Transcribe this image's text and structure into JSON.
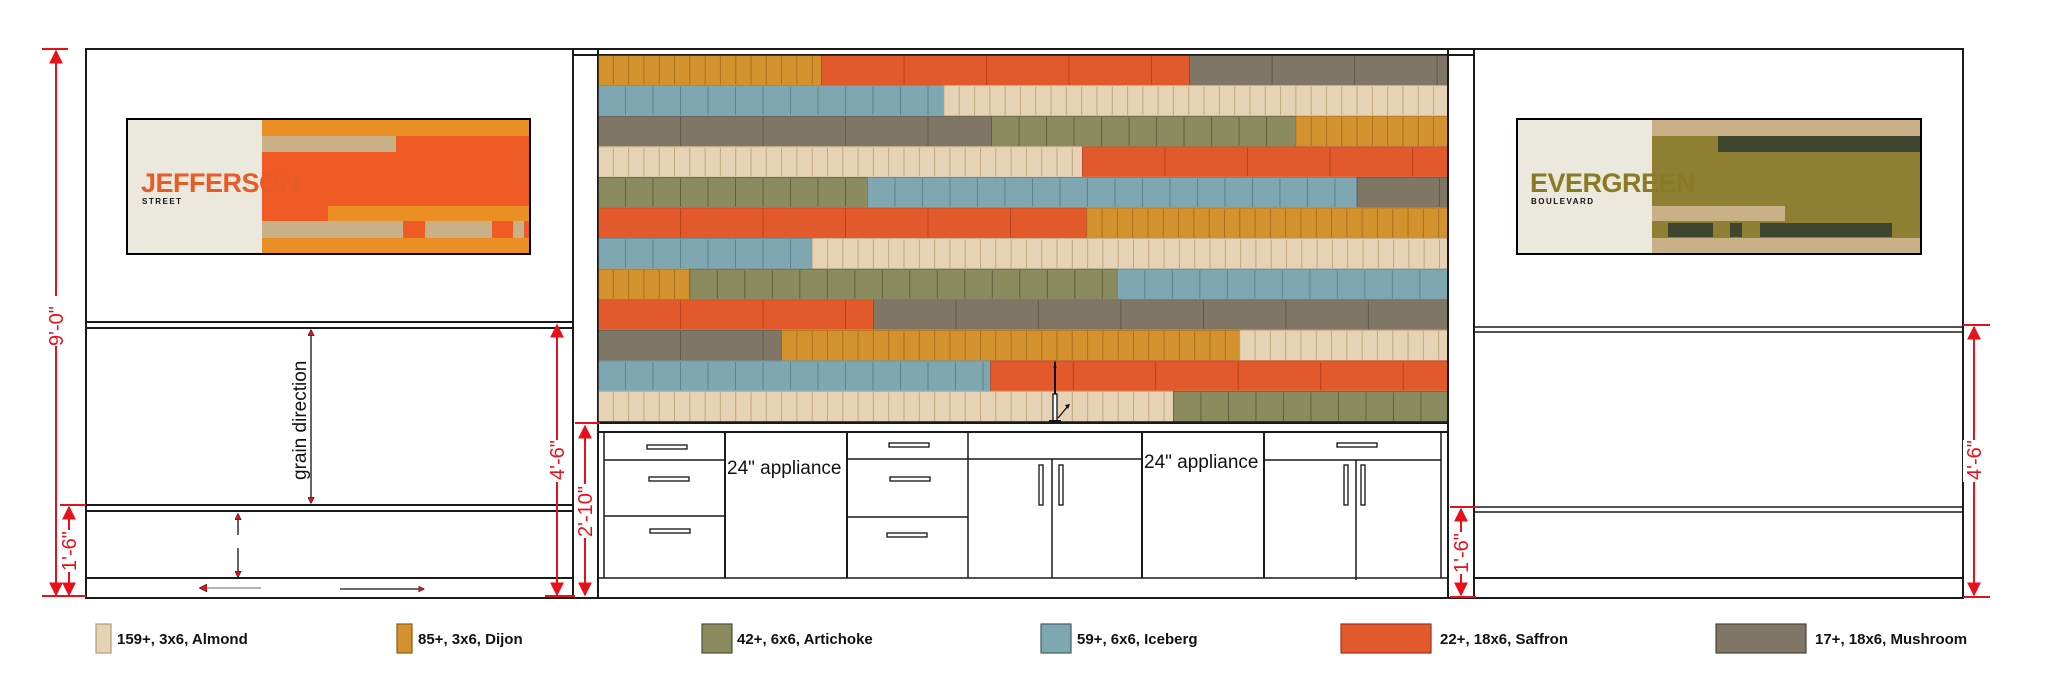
{
  "palette": {
    "Almond": "#e6d2b4",
    "Dijon": "#d4922e",
    "Artichoke": "#8a8c60",
    "Iceberg": "#7ea7b2",
    "Saffron": "#e25a2c",
    "Mushroom": "#7f7666"
  },
  "tile_sizes": {
    "Almond": "3x6",
    "Dijon": "3x6",
    "Artichoke": "6x6",
    "Iceberg": "6x6",
    "Saffron": "18x6",
    "Mushroom": "18x6"
  },
  "tile_rows": [
    [
      [
        "Dijon",
        0.263
      ],
      [
        "Saffron",
        0.696
      ],
      [
        "Mushroom",
        1.0
      ]
    ],
    [
      [
        "Iceberg",
        0.407
      ],
      [
        "Almond",
        1.0
      ]
    ],
    [
      [
        "Mushroom",
        0.463
      ],
      [
        "Artichoke",
        0.821
      ],
      [
        "Dijon",
        1.0
      ]
    ],
    [
      [
        "Almond",
        0.57
      ],
      [
        "Saffron",
        1.0
      ]
    ],
    [
      [
        "Artichoke",
        0.317
      ],
      [
        "Iceberg",
        0.893
      ],
      [
        "Mushroom",
        1.0
      ]
    ],
    [
      [
        "Saffron",
        0.575
      ],
      [
        "Dijon",
        1.0
      ]
    ],
    [
      [
        "Iceberg",
        0.252
      ],
      [
        "Almond",
        1.0
      ]
    ],
    [
      [
        "Dijon",
        0.108
      ],
      [
        "Artichoke",
        0.611
      ],
      [
        "Iceberg",
        1.0
      ]
    ],
    [
      [
        "Saffron",
        0.324
      ],
      [
        "Mushroom",
        1.0
      ]
    ],
    [
      [
        "Mushroom",
        0.216
      ],
      [
        "Dijon",
        0.755
      ],
      [
        "Almond",
        1.0
      ]
    ],
    [
      [
        "Iceberg",
        0.462
      ],
      [
        "Saffron",
        1.0
      ]
    ],
    [
      [
        "Almond",
        0.677
      ],
      [
        "Artichoke",
        1.0
      ]
    ]
  ],
  "signs": {
    "left": {
      "title": "JEFFERSON",
      "subtitle": "STREET",
      "title_color": "#e85a26"
    },
    "right": {
      "title": "EVERGREEN",
      "subtitle": "BOULEVARD",
      "title_color": "#8a7a24"
    }
  },
  "annotations": {
    "grain": "grain direction",
    "appliance_1": "24\" appliance",
    "appliance_2": "24\" appliance"
  },
  "dimensions": {
    "total_height": "9'-0\"",
    "left_bench": "1'-6\"",
    "left_back": "4'-6\"",
    "counter": "2'-10\"",
    "right_bench": "1'-6\"",
    "right_back": "4'-6\""
  },
  "legend": [
    {
      "label": "159+, 3x6, Almond",
      "color": "#e6d2b4",
      "border": "#b99a72"
    },
    {
      "label": "85+, 3x6, Dijon",
      "color": "#d4922e",
      "border": "#8a5a16"
    },
    {
      "label": "42+, 6x6, Artichoke",
      "color": "#8a8c60",
      "border": "#4e5034"
    },
    {
      "label": "59+, 6x6, Iceberg",
      "color": "#7ea7b2",
      "border": "#3f5e66"
    },
    {
      "label": "22+, 18x6, Saffron",
      "color": "#e25a2c",
      "border": "#a5301a"
    },
    {
      "label": "17+, 18x6, Mushroom",
      "color": "#7f7666",
      "border": "#4a4438"
    }
  ]
}
